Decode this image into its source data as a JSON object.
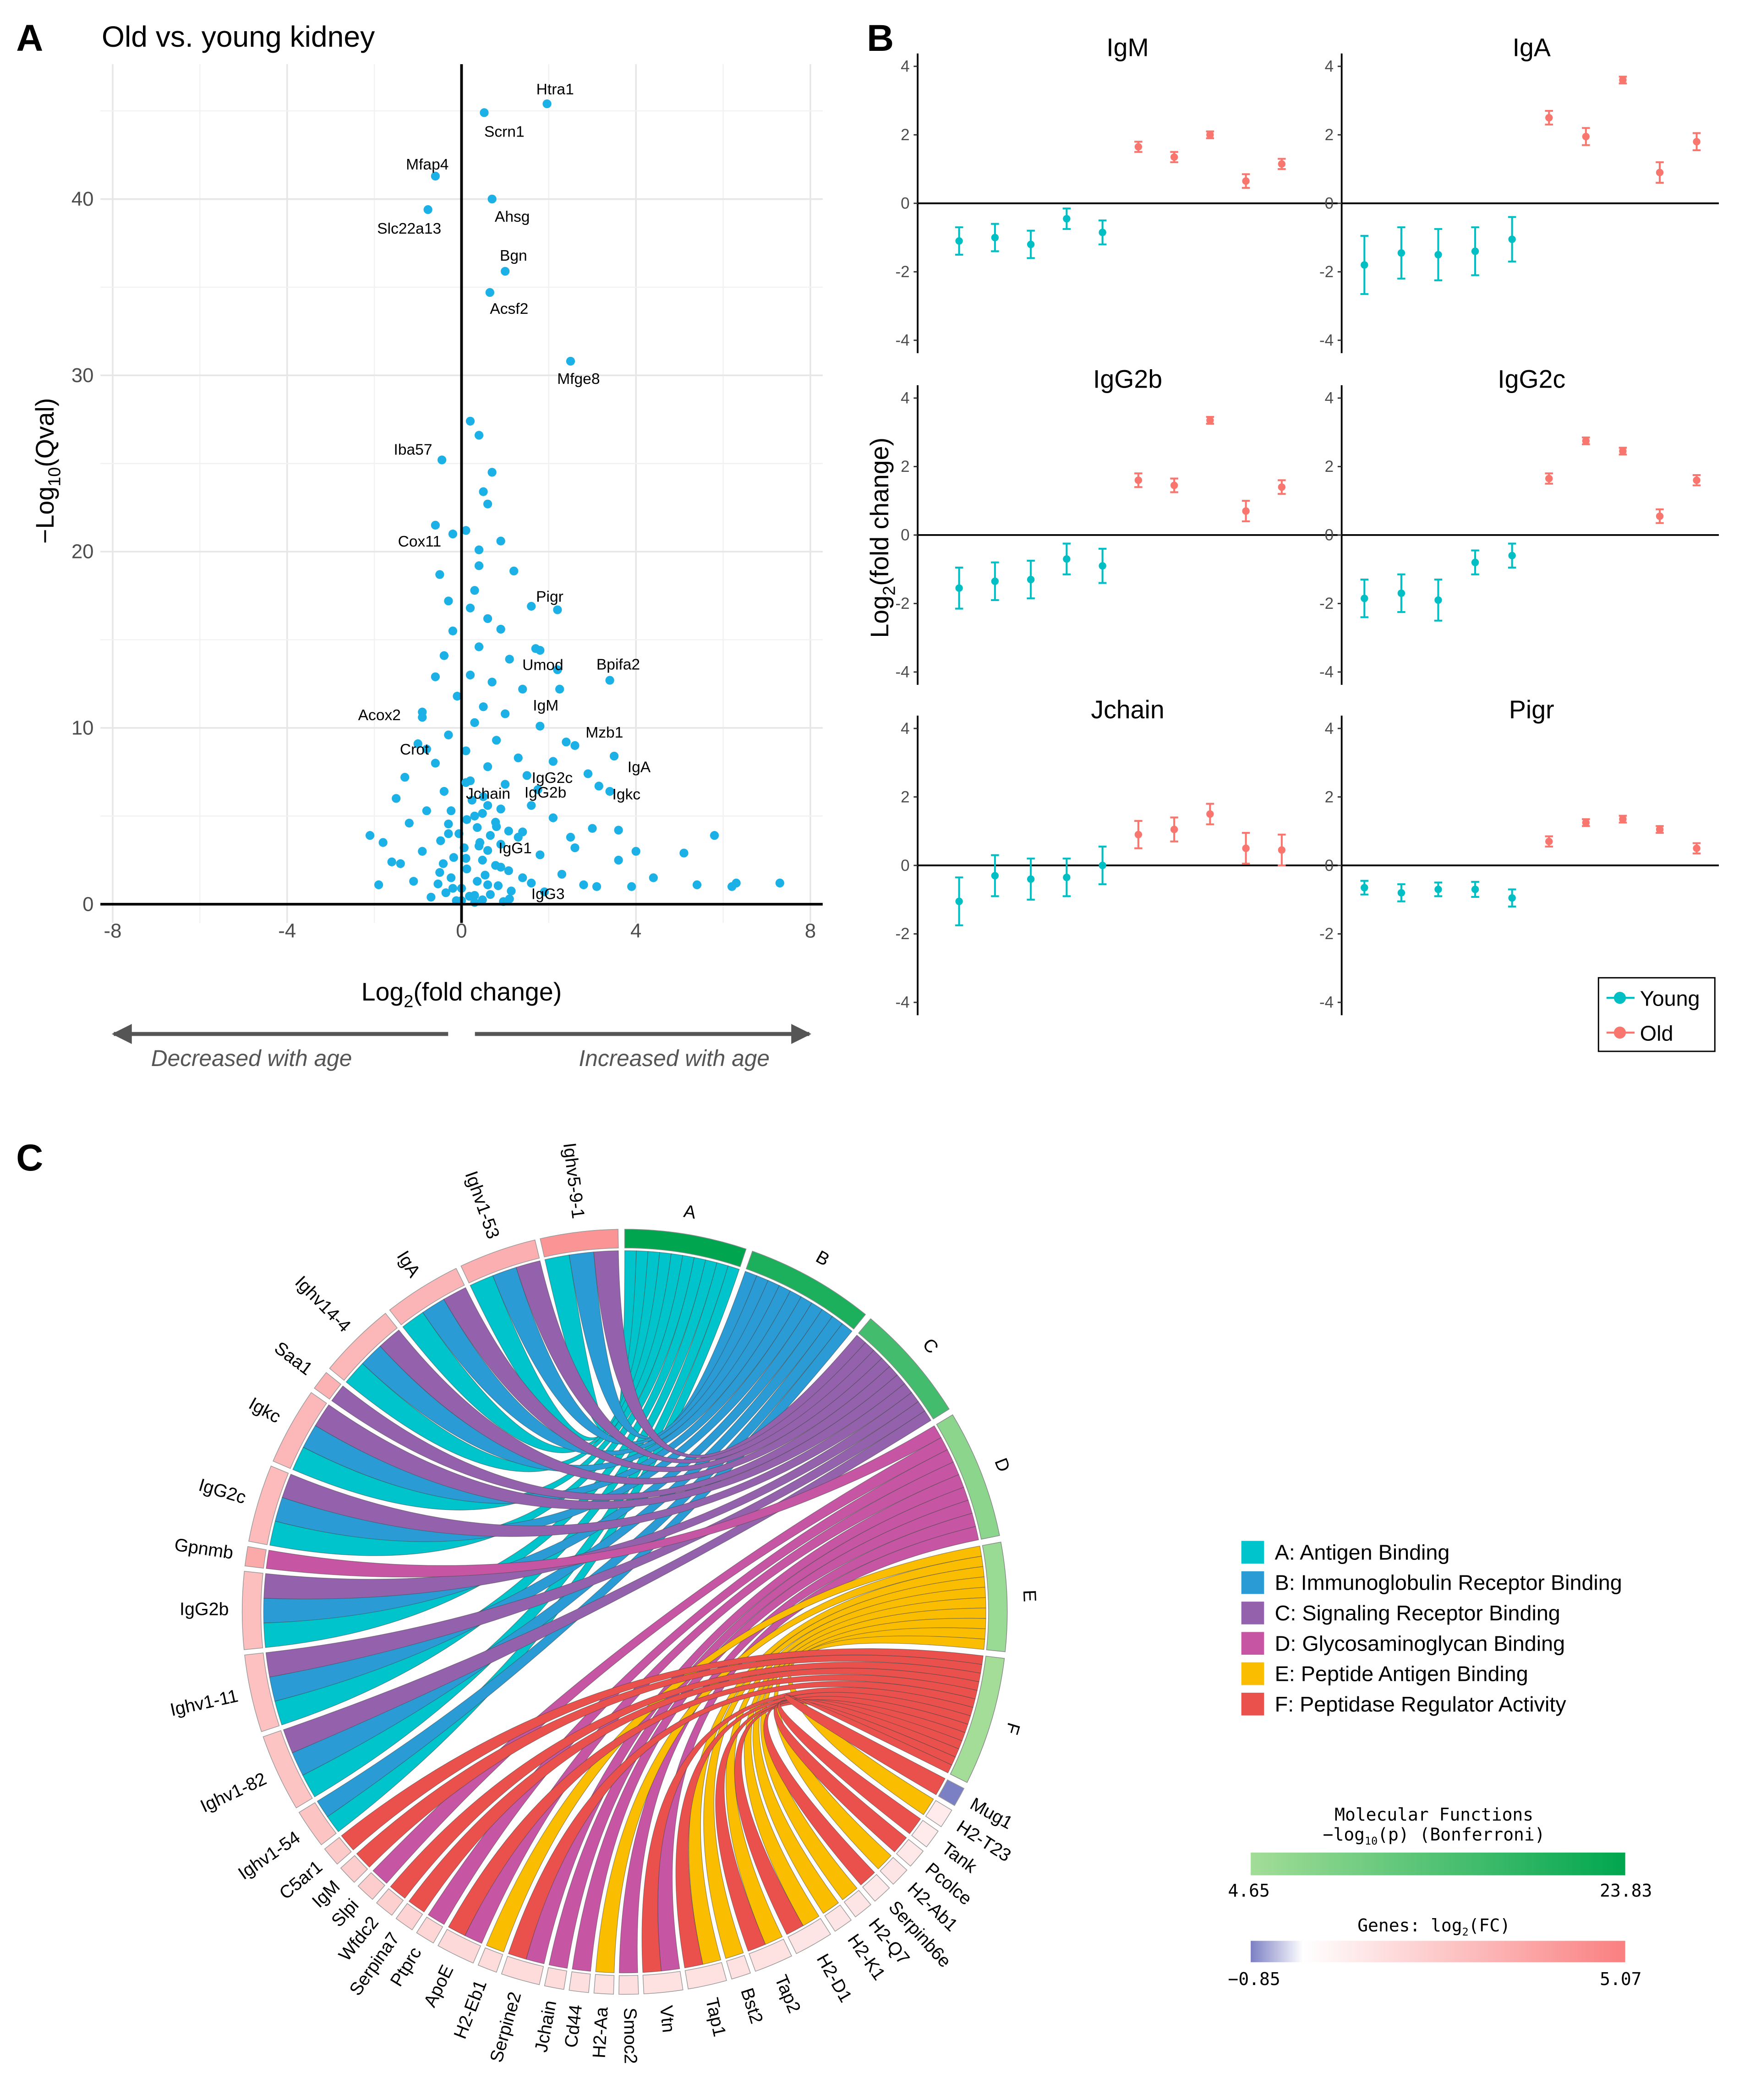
{
  "panel_letters": {
    "a": "A",
    "b": "B",
    "c": "C"
  },
  "chart_data": [
    {
      "type": "scatter",
      "panel": "A",
      "title": "Old vs. young kidney",
      "xlabel": {
        "base": "Log",
        "sub": "2",
        "rest": "(fold change)"
      },
      "ylabel": {
        "pre": "−Log",
        "sub": "10",
        "rest": "(Qval)"
      },
      "xlim": [
        -8.5,
        8.3
      ],
      "ylim": [
        -1,
        48
      ],
      "xticks": [
        -8,
        -4,
        0,
        4,
        8
      ],
      "yticks": [
        0,
        10,
        20,
        30,
        40
      ],
      "grid": true,
      "point_color": "#1cb1e6",
      "annotations": {
        "left": "Decreased with age",
        "right": "Increased with age"
      },
      "labeled_points": [
        {
          "label": "Htra1",
          "x": 1.96,
          "y": 45.4
        },
        {
          "label": "Scrn1",
          "x": 0.52,
          "y": 44.9
        },
        {
          "label": "Mfap4",
          "x": -0.6,
          "y": 41.3
        },
        {
          "label": "Ahsg",
          "x": 0.7,
          "y": 40.0
        },
        {
          "label": "Slc22a13",
          "x": -0.77,
          "y": 39.4
        },
        {
          "label": "Bgn",
          "x": 1.0,
          "y": 35.9
        },
        {
          "label": "Acsf2",
          "x": 0.65,
          "y": 34.7
        },
        {
          "label": "Mfge8",
          "x": 2.5,
          "y": 30.8
        },
        {
          "label": "Iba57",
          "x": -0.45,
          "y": 25.2
        },
        {
          "label": "Cox11",
          "x": -0.6,
          "y": 21.5
        },
        {
          "label": "Pigr",
          "x": 2.2,
          "y": 16.7
        },
        {
          "label": "Umod",
          "x": 1.7,
          "y": 14.5
        },
        {
          "label": "Bpifa2",
          "x": 3.4,
          "y": 12.7
        },
        {
          "label": "IgM",
          "x": 2.25,
          "y": 12.2
        },
        {
          "label": "Acox2",
          "x": -0.9,
          "y": 10.9
        },
        {
          "label": "Mzb1",
          "x": 2.6,
          "y": 9.0
        },
        {
          "label": "Crot",
          "x": -0.8,
          "y": 8.8
        },
        {
          "label": "IgA",
          "x": 3.5,
          "y": 8.4
        },
        {
          "label": "IgG2c",
          "x": 2.1,
          "y": 8.1
        },
        {
          "label": "Jchain",
          "x": 0.1,
          "y": 6.9
        },
        {
          "label": "Igkc",
          "x": 3.15,
          "y": 6.7
        },
        {
          "label": "IgG2b",
          "x": 1.75,
          "y": 6.5
        },
        {
          "label": "IgG1",
          "x": 1.4,
          "y": 4.1
        },
        {
          "label": "IgG3",
          "x": 1.6,
          "y": 1.2
        }
      ],
      "points": [
        [
          0.2,
          27.4
        ],
        [
          0.4,
          26.6
        ],
        [
          0.7,
          24.5
        ],
        [
          0.5,
          23.4
        ],
        [
          0.6,
          22.7
        ],
        [
          0.9,
          20.6
        ],
        [
          0.1,
          21.2
        ],
        [
          1.2,
          18.9
        ],
        [
          0.4,
          19.2
        ],
        [
          -0.5,
          18.7
        ],
        [
          0.3,
          17.8
        ],
        [
          -0.3,
          17.2
        ],
        [
          0.2,
          16.8
        ],
        [
          1.6,
          16.9
        ],
        [
          0.6,
          16.2
        ],
        [
          -0.2,
          15.5
        ],
        [
          0.9,
          15.6
        ],
        [
          1.8,
          14.4
        ],
        [
          0.4,
          14.6
        ],
        [
          -0.4,
          14.1
        ],
        [
          1.1,
          13.9
        ],
        [
          0.2,
          13.0
        ],
        [
          2.2,
          13.3
        ],
        [
          -0.6,
          12.9
        ],
        [
          0.7,
          12.6
        ],
        [
          1.4,
          12.2
        ],
        [
          -0.1,
          11.8
        ],
        [
          0.5,
          11.2
        ],
        [
          1.0,
          10.8
        ],
        [
          -0.9,
          10.6
        ],
        [
          0.3,
          10.3
        ],
        [
          1.8,
          10.1
        ],
        [
          -0.3,
          9.6
        ],
        [
          0.8,
          9.3
        ],
        [
          2.4,
          9.2
        ],
        [
          -1.0,
          9.1
        ],
        [
          0.1,
          8.7
        ],
        [
          1.3,
          8.3
        ],
        [
          -0.6,
          8.0
        ],
        [
          0.6,
          7.8
        ],
        [
          2.9,
          7.4
        ],
        [
          -1.3,
          7.2
        ],
        [
          0.2,
          7.0
        ],
        [
          1.0,
          6.8
        ],
        [
          -0.4,
          6.4
        ],
        [
          0.5,
          6.1
        ],
        [
          3.4,
          6.4
        ],
        [
          -1.5,
          6.0
        ],
        [
          1.6,
          5.6
        ],
        [
          -0.8,
          5.3
        ],
        [
          0.3,
          5.0
        ],
        [
          2.1,
          4.9
        ],
        [
          -1.2,
          4.6
        ],
        [
          0.8,
          4.4
        ],
        [
          3.0,
          4.3
        ],
        [
          -0.3,
          4.0
        ],
        [
          1.3,
          3.8
        ],
        [
          -1.8,
          3.5
        ],
        [
          0.4,
          3.3
        ],
        [
          2.6,
          3.2
        ],
        [
          -0.9,
          3.0
        ],
        [
          1.8,
          2.8
        ],
        [
          0.1,
          2.6
        ],
        [
          3.6,
          2.5
        ],
        [
          -1.4,
          2.3
        ],
        [
          0.9,
          2.1
        ],
        [
          -0.5,
          1.8
        ],
        [
          2.3,
          1.7
        ],
        [
          1.4,
          1.5
        ],
        [
          -1.1,
          1.3
        ],
        [
          0.6,
          1.1
        ],
        [
          3.1,
          1.0
        ],
        [
          -0.2,
          0.9
        ],
        [
          1.9,
          0.7
        ],
        [
          0.3,
          0.5
        ],
        [
          -0.7,
          0.4
        ],
        [
          1.1,
          0.3
        ],
        [
          0.0,
          0.2
        ],
        [
          2.8,
          1.1
        ],
        [
          3.9,
          1.0
        ],
        [
          4.4,
          1.5
        ],
        [
          4.0,
          3.0
        ],
        [
          3.6,
          4.2
        ],
        [
          5.1,
          2.9
        ],
        [
          5.4,
          1.1
        ],
        [
          5.8,
          3.9
        ],
        [
          6.2,
          1.0
        ],
        [
          6.3,
          1.2
        ],
        [
          7.3,
          1.2
        ],
        [
          -2.1,
          3.9
        ],
        [
          -1.9,
          1.1
        ],
        [
          -1.6,
          2.4
        ],
        [
          2.5,
          3.8
        ],
        [
          1.5,
          7.3
        ],
        [
          -0.2,
          21.0
        ],
        [
          0.4,
          20.1
        ]
      ]
    },
    {
      "type": "errorbar",
      "panel": "B",
      "ylabel": {
        "base": "Log",
        "sub": "2",
        "rest": "(fold change)"
      },
      "ylim": [
        -4.2,
        4.3
      ],
      "yticks": [
        -4,
        -2,
        0,
        2,
        4
      ],
      "legend": {
        "position": "bottom-right",
        "entries": [
          {
            "name": "Young",
            "color": "#00bfc4"
          },
          {
            "name": "Old",
            "color": "#f8766d"
          }
        ]
      },
      "facets": [
        {
          "title": "IgM",
          "young": {
            "mean": [
              -1.1,
              -1.0,
              -1.2,
              -0.45,
              -0.85
            ],
            "err": [
              0.4,
              0.4,
              0.4,
              0.3,
              0.35
            ]
          },
          "old": {
            "mean": [
              1.65,
              1.35,
              2.0,
              0.65,
              1.15
            ],
            "err": [
              0.15,
              0.15,
              0.1,
              0.2,
              0.15
            ]
          }
        },
        {
          "title": "IgA",
          "young": {
            "mean": [
              -1.8,
              -1.45,
              -1.5,
              -1.4,
              -1.05
            ],
            "err": [
              0.85,
              0.75,
              0.75,
              0.7,
              0.65
            ]
          },
          "old": {
            "mean": [
              2.5,
              1.95,
              3.6,
              0.9,
              1.8
            ],
            "err": [
              0.2,
              0.25,
              0.1,
              0.3,
              0.25
            ]
          }
        },
        {
          "title": "IgG2b",
          "young": {
            "mean": [
              -1.55,
              -1.35,
              -1.3,
              -0.7,
              -0.9
            ],
            "err": [
              0.6,
              0.55,
              0.55,
              0.45,
              0.5
            ]
          },
          "old": {
            "mean": [
              1.6,
              1.45,
              3.35,
              0.7,
              1.4
            ],
            "err": [
              0.2,
              0.2,
              0.1,
              0.3,
              0.2
            ]
          }
        },
        {
          "title": "IgG2c",
          "young": {
            "mean": [
              -1.85,
              -1.7,
              -1.9,
              -0.8,
              -0.6
            ],
            "err": [
              0.55,
              0.55,
              0.6,
              0.35,
              0.35
            ]
          },
          "old": {
            "mean": [
              1.65,
              2.75,
              2.45,
              0.55,
              1.6
            ],
            "err": [
              0.15,
              0.1,
              0.1,
              0.2,
              0.15
            ]
          }
        },
        {
          "title": "Jchain",
          "young": {
            "mean": [
              -1.05,
              -0.3,
              -0.4,
              -0.35,
              0.0
            ],
            "err": [
              0.7,
              0.6,
              0.6,
              0.55,
              0.55
            ]
          },
          "old": {
            "mean": [
              0.9,
              1.05,
              1.5,
              0.5,
              0.45
            ],
            "err": [
              0.4,
              0.35,
              0.3,
              0.45,
              0.45
            ]
          }
        },
        {
          "title": "Pigr",
          "young": {
            "mean": [
              -0.65,
              -0.8,
              -0.7,
              -0.7,
              -0.95
            ],
            "err": [
              0.2,
              0.25,
              0.2,
              0.22,
              0.25
            ]
          },
          "old": {
            "mean": [
              0.7,
              1.25,
              1.35,
              1.05,
              0.5
            ],
            "err": [
              0.15,
              0.1,
              0.1,
              0.1,
              0.15
            ]
          }
        }
      ]
    },
    {
      "type": "chord",
      "panel": "C",
      "categories": [
        {
          "id": "A",
          "label": "A: Antigen Binding",
          "color": "#00c4cc",
          "neglog10p": 23.83
        },
        {
          "id": "B",
          "label": "B: Immunoglobulin Receptor Binding",
          "color": "#2a9bd4",
          "neglog10p": 20.5
        },
        {
          "id": "C",
          "label": "C: Signaling Receptor Binding",
          "color": "#9462ad",
          "neglog10p": 16.0
        },
        {
          "id": "D",
          "label": "D: Glycosaminoglycan Binding",
          "color": "#c656a4",
          "neglog10p": 7.5
        },
        {
          "id": "E",
          "label": "E: Peptide Antigen Binding",
          "color": "#fbbd00",
          "neglog10p": 5.8
        },
        {
          "id": "F",
          "label": "F: Peptidase Regulator Activity",
          "color": "#ea504c",
          "neglog10p": 4.65
        }
      ],
      "genes": [
        {
          "name": "Mug1",
          "log2fc": -0.85,
          "links": [
            "F"
          ]
        },
        {
          "name": "H2-T23",
          "log2fc": 0.3,
          "links": [
            "E"
          ]
        },
        {
          "name": "Tank",
          "log2fc": 0.3,
          "links": [
            "F"
          ]
        },
        {
          "name": "Pcolce",
          "log2fc": 0.4,
          "links": [
            "F"
          ]
        },
        {
          "name": "H2-Ab1",
          "log2fc": 0.5,
          "links": [
            "E"
          ]
        },
        {
          "name": "Serpinb6e",
          "log2fc": 0.4,
          "links": [
            "F"
          ]
        },
        {
          "name": "H2-Q7",
          "log2fc": 0.5,
          "links": [
            "E"
          ]
        },
        {
          "name": "H2-K1",
          "log2fc": 0.5,
          "links": [
            "E"
          ]
        },
        {
          "name": "H2-D1",
          "log2fc": 0.5,
          "links": [
            "E",
            "F"
          ]
        },
        {
          "name": "Tap2",
          "log2fc": 0.6,
          "links": [
            "E",
            "F"
          ]
        },
        {
          "name": "Bst2",
          "log2fc": 0.6,
          "links": [
            "E"
          ]
        },
        {
          "name": "Tap1",
          "log2fc": 0.6,
          "links": [
            "E",
            "F"
          ]
        },
        {
          "name": "Vtn",
          "log2fc": 0.6,
          "links": [
            "D",
            "F"
          ]
        },
        {
          "name": "Smoc2",
          "log2fc": 0.7,
          "links": [
            "D"
          ]
        },
        {
          "name": "H2-Aa",
          "log2fc": 0.6,
          "links": [
            "E"
          ]
        },
        {
          "name": "Cd44",
          "log2fc": 0.7,
          "links": [
            "D"
          ]
        },
        {
          "name": "Jchain",
          "log2fc": 0.8,
          "links": [
            "D"
          ]
        },
        {
          "name": "Serpine2",
          "log2fc": 0.8,
          "links": [
            "D",
            "F"
          ]
        },
        {
          "name": "H2-Eb1",
          "log2fc": 0.8,
          "links": [
            "E"
          ]
        },
        {
          "name": "ApoE",
          "log2fc": 0.9,
          "links": [
            "D",
            "F"
          ]
        },
        {
          "name": "Ptprc",
          "log2fc": 1.0,
          "links": [
            "D"
          ]
        },
        {
          "name": "Serpina7",
          "log2fc": 1.1,
          "links": [
            "F"
          ]
        },
        {
          "name": "Wfdc2",
          "log2fc": 1.2,
          "links": [
            "F"
          ]
        },
        {
          "name": "Slpi",
          "log2fc": 1.3,
          "links": [
            "D"
          ]
        },
        {
          "name": "IgM",
          "log2fc": 1.3,
          "links": [
            "F"
          ]
        },
        {
          "name": "C5ar1",
          "log2fc": 1.4,
          "links": [
            "F"
          ]
        },
        {
          "name": "Ighv1-54",
          "log2fc": 1.6,
          "links": [
            "A",
            "B"
          ]
        },
        {
          "name": "Ighv1-82",
          "log2fc": 1.6,
          "links": [
            "A",
            "B",
            "C"
          ]
        },
        {
          "name": "Ighv1-11",
          "log2fc": 1.7,
          "links": [
            "A",
            "B",
            "C"
          ]
        },
        {
          "name": "IgG2b",
          "log2fc": 1.8,
          "links": [
            "A",
            "B",
            "C"
          ]
        },
        {
          "name": "Gpnmb",
          "log2fc": 2.5,
          "links": [
            "D"
          ]
        },
        {
          "name": "IgG2c",
          "log2fc": 1.9,
          "links": [
            "A",
            "B",
            "C"
          ]
        },
        {
          "name": "Igkc",
          "log2fc": 2.0,
          "links": [
            "A",
            "B",
            "C"
          ]
        },
        {
          "name": "Saa1",
          "log2fc": 2.2,
          "links": [
            "C"
          ]
        },
        {
          "name": "Ighv14-4",
          "log2fc": 2.0,
          "links": [
            "A",
            "B",
            "C"
          ]
        },
        {
          "name": "IgA",
          "log2fc": 2.1,
          "links": [
            "A",
            "B",
            "C"
          ]
        },
        {
          "name": "Ighv1-53",
          "log2fc": 2.3,
          "links": [
            "A",
            "B",
            "C"
          ]
        },
        {
          "name": "Ighv5-9-1",
          "log2fc": 3.2,
          "links": [
            "A",
            "B",
            "C"
          ]
        }
      ],
      "colorbars": {
        "functions": {
          "title1": "Molecular Functions",
          "title2_pre": "−log",
          "title2_sub": "10",
          "title2_rest": "(p) (Bonferroni)",
          "min": "4.65",
          "max": "23.83",
          "low_color": "#a3dd98",
          "high_color": "#00a64f"
        },
        "genes": {
          "title_pre": "Genes: log",
          "title_sub": "2",
          "title_rest": "(FC)",
          "min": "−0.85",
          "max": "5.07",
          "low_color": "#7b7fc4",
          "mid_color": "#ffffff",
          "high_color": "#fa7f80"
        }
      }
    }
  ]
}
